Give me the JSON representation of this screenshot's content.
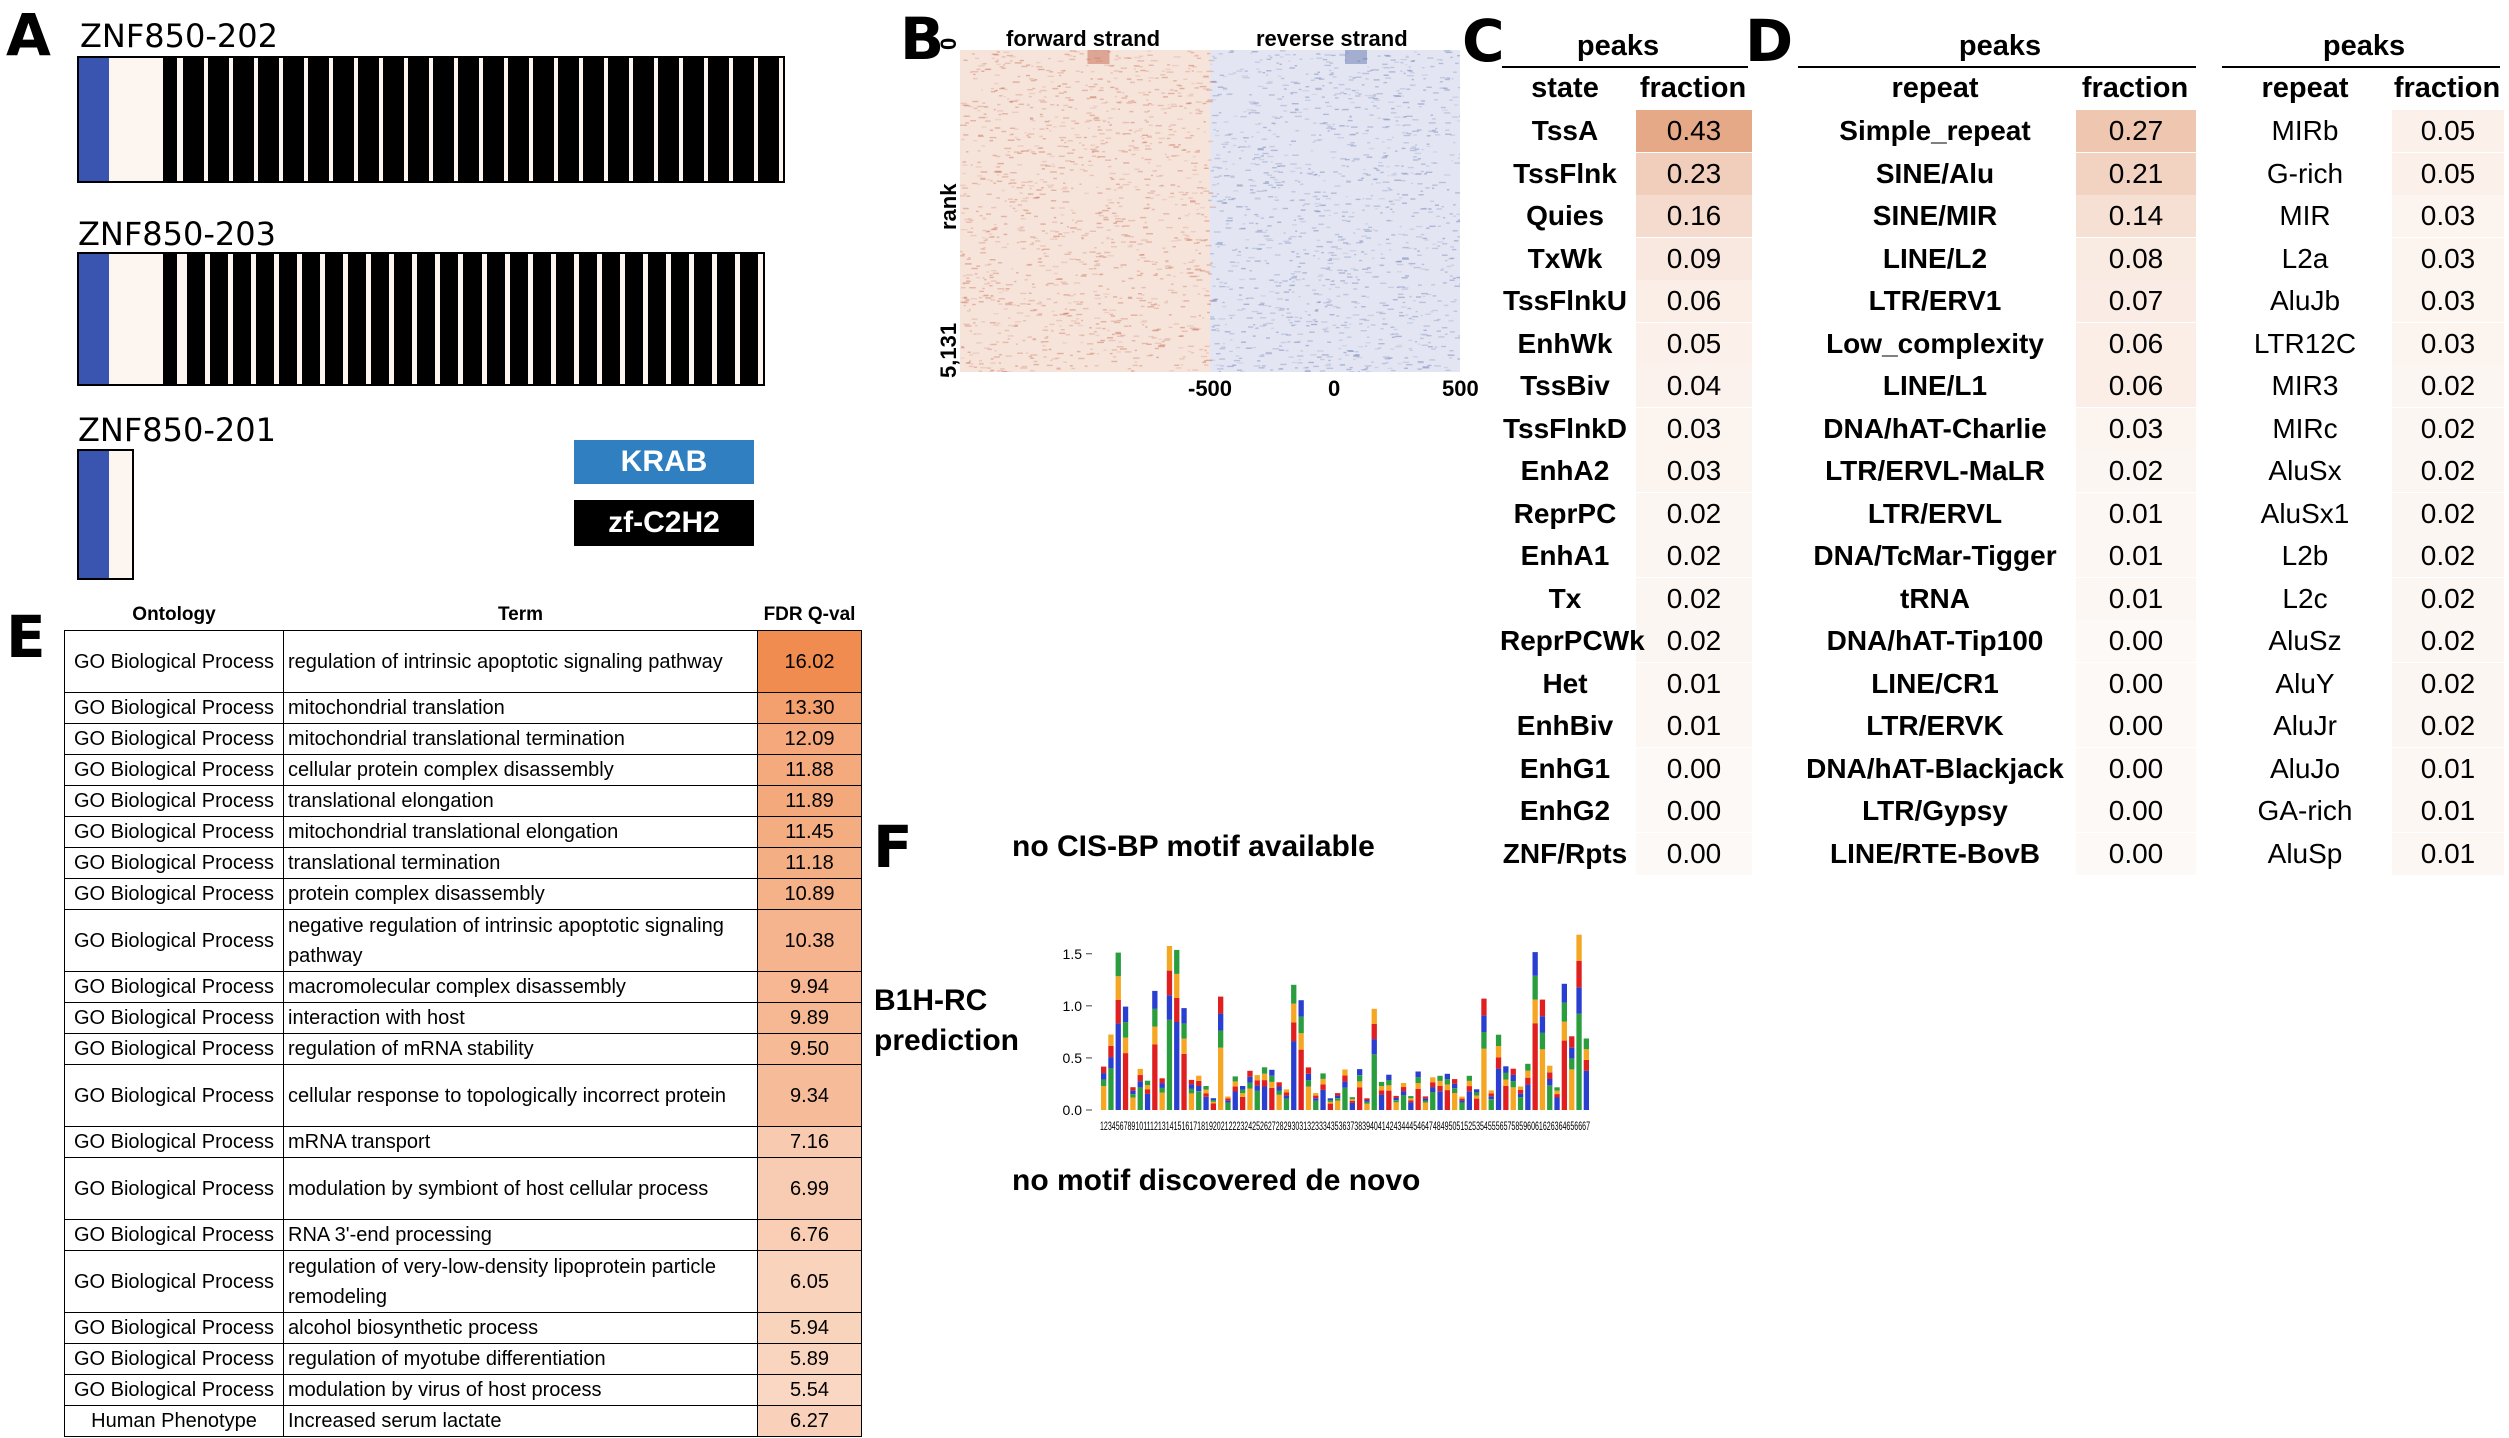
{
  "panels": {
    "A": "A",
    "B": "B",
    "C": "C",
    "D": "D",
    "E": "E",
    "F": "F"
  },
  "panel_a": {
    "isoforms": [
      {
        "name": "ZNF850-202"
      },
      {
        "name": "ZNF850-203"
      },
      {
        "name": "ZNF850-201"
      }
    ],
    "legend": [
      {
        "label": "KRAB",
        "color": "#2f7fc1"
      },
      {
        "label": "zf-C2H2",
        "color": "#000000"
      }
    ],
    "colors": {
      "krab": "#3a55b0",
      "zf": "#000000",
      "background": "#fdf6f0"
    }
  },
  "panel_b": {
    "forward_label": "forward strand",
    "reverse_label": "reverse strand",
    "y_label": "rank",
    "y_top": "0",
    "y_bottom": "5,131",
    "x_ticks": [
      "-500",
      "0",
      "500"
    ],
    "colors": {
      "forward": "#c8735a",
      "reverse": "#6f7fb5"
    }
  },
  "panel_c": {
    "title": "peaks",
    "headers": [
      "state",
      "fraction"
    ],
    "rows": [
      {
        "label": "TssA",
        "fraction": "0.43"
      },
      {
        "label": "TssFlnk",
        "fraction": "0.23"
      },
      {
        "label": "Quies",
        "fraction": "0.16"
      },
      {
        "label": "TxWk",
        "fraction": "0.09"
      },
      {
        "label": "TssFlnkU",
        "fraction": "0.06"
      },
      {
        "label": "EnhWk",
        "fraction": "0.05"
      },
      {
        "label": "TssBiv",
        "fraction": "0.04"
      },
      {
        "label": "TssFlnkD",
        "fraction": "0.03"
      },
      {
        "label": "EnhA2",
        "fraction": "0.03"
      },
      {
        "label": "ReprPC",
        "fraction": "0.02"
      },
      {
        "label": "EnhA1",
        "fraction": "0.02"
      },
      {
        "label": "Tx",
        "fraction": "0.02"
      },
      {
        "label": "ReprPCWk",
        "fraction": "0.02"
      },
      {
        "label": "Het",
        "fraction": "0.01"
      },
      {
        "label": "EnhBiv",
        "fraction": "0.01"
      },
      {
        "label": "EnhG1",
        "fraction": "0.00"
      },
      {
        "label": "EnhG2",
        "fraction": "0.00"
      },
      {
        "label": "ZNF/Rpts",
        "fraction": "0.00"
      }
    ]
  },
  "panel_d_left": {
    "title": "peaks",
    "headers": [
      "repeat",
      "fraction"
    ],
    "rows": [
      {
        "label": "Simple_repeat",
        "fraction": "0.27"
      },
      {
        "label": "SINE/Alu",
        "fraction": "0.21"
      },
      {
        "label": "SINE/MIR",
        "fraction": "0.14"
      },
      {
        "label": "LINE/L2",
        "fraction": "0.08"
      },
      {
        "label": "LTR/ERV1",
        "fraction": "0.07"
      },
      {
        "label": "Low_complexity",
        "fraction": "0.06"
      },
      {
        "label": "LINE/L1",
        "fraction": "0.06"
      },
      {
        "label": "DNA/hAT-Charlie",
        "fraction": "0.03"
      },
      {
        "label": "LTR/ERVL-MaLR",
        "fraction": "0.02"
      },
      {
        "label": "LTR/ERVL",
        "fraction": "0.01"
      },
      {
        "label": "DNA/TcMar-Tigger",
        "fraction": "0.01"
      },
      {
        "label": "tRNA",
        "fraction": "0.01"
      },
      {
        "label": "DNA/hAT-Tip100",
        "fraction": "0.00"
      },
      {
        "label": "LINE/CR1",
        "fraction": "0.00"
      },
      {
        "label": "LTR/ERVK",
        "fraction": "0.00"
      },
      {
        "label": "DNA/hAT-Blackjack",
        "fraction": "0.00"
      },
      {
        "label": "LTR/Gypsy",
        "fraction": "0.00"
      },
      {
        "label": "LINE/RTE-BovB",
        "fraction": "0.00"
      }
    ]
  },
  "panel_d_right": {
    "title": "peaks",
    "headers": [
      "repeat",
      "fraction"
    ],
    "rows": [
      {
        "label": "MIRb",
        "fraction": "0.05"
      },
      {
        "label": "G-rich",
        "fraction": "0.05"
      },
      {
        "label": "MIR",
        "fraction": "0.03"
      },
      {
        "label": "L2a",
        "fraction": "0.03"
      },
      {
        "label": "AluJb",
        "fraction": "0.03"
      },
      {
        "label": "LTR12C",
        "fraction": "0.03"
      },
      {
        "label": "MIR3",
        "fraction": "0.02"
      },
      {
        "label": "MIRc",
        "fraction": "0.02"
      },
      {
        "label": "AluSx",
        "fraction": "0.02"
      },
      {
        "label": "AluSx1",
        "fraction": "0.02"
      },
      {
        "label": "L2b",
        "fraction": "0.02"
      },
      {
        "label": "L2c",
        "fraction": "0.02"
      },
      {
        "label": "AluSz",
        "fraction": "0.02"
      },
      {
        "label": "AluY",
        "fraction": "0.02"
      },
      {
        "label": "AluJr",
        "fraction": "0.02"
      },
      {
        "label": "AluJo",
        "fraction": "0.01"
      },
      {
        "label": "GA-rich",
        "fraction": "0.01"
      },
      {
        "label": "AluSp",
        "fraction": "0.01"
      }
    ]
  },
  "panel_e": {
    "headers": [
      "Ontology",
      "Term",
      "FDR Q-val"
    ],
    "rows": [
      {
        "ontology": "GO Biological Process",
        "term": "regulation of intrinsic apoptotic signaling pathway",
        "fdr": "16.02"
      },
      {
        "ontology": "GO Biological Process",
        "term": "mitochondrial translation",
        "fdr": "13.30"
      },
      {
        "ontology": "GO Biological Process",
        "term": "mitochondrial translational termination",
        "fdr": "12.09"
      },
      {
        "ontology": "GO Biological Process",
        "term": "cellular protein complex disassembly",
        "fdr": "11.88"
      },
      {
        "ontology": "GO Biological Process",
        "term": "translational elongation",
        "fdr": "11.89"
      },
      {
        "ontology": "GO Biological Process",
        "term": "mitochondrial translational elongation",
        "fdr": "11.45"
      },
      {
        "ontology": "GO Biological Process",
        "term": "translational termination",
        "fdr": "11.18"
      },
      {
        "ontology": "GO Biological Process",
        "term": "protein complex disassembly",
        "fdr": "10.89"
      },
      {
        "ontology": "GO Biological Process",
        "term": "negative regulation of intrinsic apoptotic signaling pathway",
        "fdr": "10.38"
      },
      {
        "ontology": "GO Biological Process",
        "term": "macromolecular complex disassembly",
        "fdr": "9.94"
      },
      {
        "ontology": "GO Biological Process",
        "term": "interaction with host",
        "fdr": "9.89"
      },
      {
        "ontology": "GO Biological Process",
        "term": "regulation of mRNA stability",
        "fdr": "9.50"
      },
      {
        "ontology": "GO Biological Process",
        "term": "cellular response to topologically incorrect protein",
        "fdr": "9.34"
      },
      {
        "ontology": "GO Biological Process",
        "term": "mRNA transport",
        "fdr": "7.16"
      },
      {
        "ontology": "GO Biological Process",
        "term": "modulation by symbiont of host cellular process",
        "fdr": "6.99"
      },
      {
        "ontology": "GO Biological Process",
        "term": "RNA 3'-end processing",
        "fdr": "6.76"
      },
      {
        "ontology": "GO Biological Process",
        "term": "regulation of very-low-density lipoprotein particle remodeling",
        "fdr": "6.05"
      },
      {
        "ontology": "GO Biological Process",
        "term": "alcohol biosynthetic process",
        "fdr": "5.94"
      },
      {
        "ontology": "GO Biological Process",
        "term": "regulation of myotube differentiation",
        "fdr": "5.89"
      },
      {
        "ontology": "GO Biological Process",
        "term": "modulation by virus of host process",
        "fdr": "5.54"
      },
      {
        "ontology": "Human Phenotype",
        "term": "Increased serum lactate",
        "fdr": "6.27"
      }
    ]
  },
  "panel_f": {
    "cisbp": "no CIS-BP motif available",
    "b1h_line1": "B1H-RC",
    "b1h_line2": "prediction",
    "denovo": "no motif discovered de novo",
    "y_ticks": [
      "1.5",
      "1.0",
      "0.5",
      "0.0"
    ],
    "x_ticks_text": "12345678910111213141516171819202122232425262728293031323334353637383940414243444546474849505152535455565758596061626364656667"
  }
}
